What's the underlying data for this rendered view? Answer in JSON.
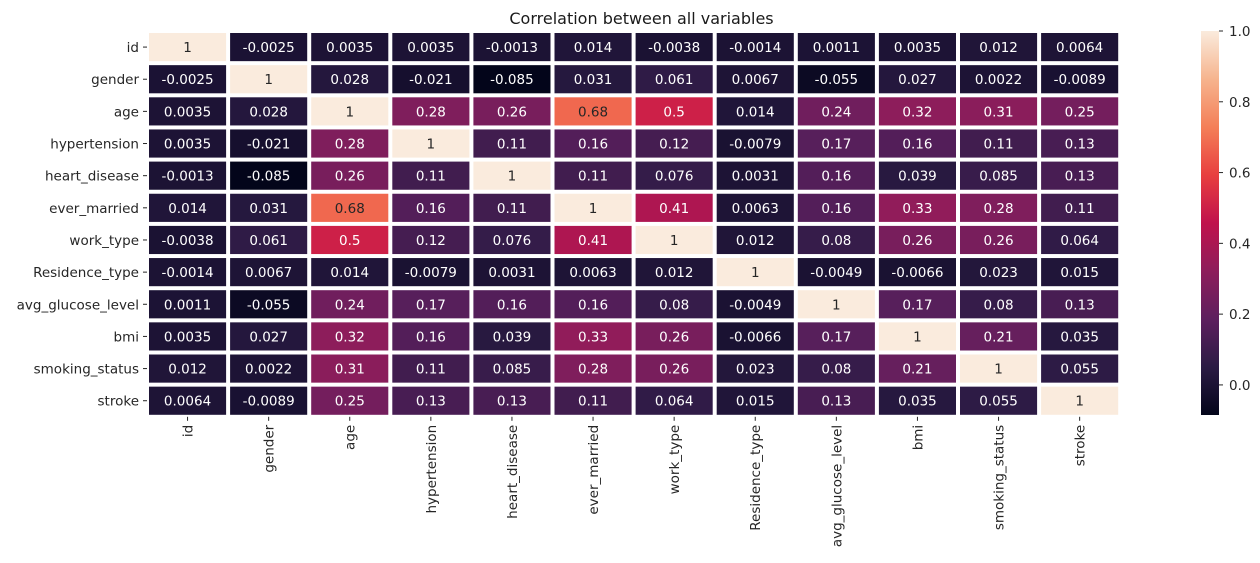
{
  "chart_data": {
    "type": "heatmap",
    "title": "Correlation between all variables",
    "xlabel": "",
    "ylabel": "",
    "labels": [
      "id",
      "gender",
      "age",
      "hypertension",
      "heart_disease",
      "ever_married",
      "work_type",
      "Residence_type",
      "avg_glucose_level",
      "bmi",
      "smoking_status",
      "stroke"
    ],
    "matrix": [
      [
        "1",
        "-0.0025",
        "0.0035",
        "0.0035",
        "-0.0013",
        "0.014",
        "-0.0038",
        "-0.0014",
        "0.0011",
        "0.0035",
        "0.012",
        "0.0064"
      ],
      [
        "-0.0025",
        "1",
        "0.028",
        "-0.021",
        "-0.085",
        "0.031",
        "0.061",
        "0.0067",
        "-0.055",
        "0.027",
        "0.0022",
        "-0.0089"
      ],
      [
        "0.0035",
        "0.028",
        "1",
        "0.28",
        "0.26",
        "0.68",
        "0.5",
        "0.014",
        "0.24",
        "0.32",
        "0.31",
        "0.25"
      ],
      [
        "0.0035",
        "-0.021",
        "0.28",
        "1",
        "0.11",
        "0.16",
        "0.12",
        "-0.0079",
        "0.17",
        "0.16",
        "0.11",
        "0.13"
      ],
      [
        "-0.0013",
        "-0.085",
        "0.26",
        "0.11",
        "1",
        "0.11",
        "0.076",
        "0.0031",
        "0.16",
        "0.039",
        "0.085",
        "0.13"
      ],
      [
        "0.014",
        "0.031",
        "0.68",
        "0.16",
        "0.11",
        "1",
        "0.41",
        "0.0063",
        "0.16",
        "0.33",
        "0.28",
        "0.11"
      ],
      [
        "-0.0038",
        "0.061",
        "0.5",
        "0.12",
        "0.076",
        "0.41",
        "1",
        "0.012",
        "0.08",
        "0.26",
        "0.26",
        "0.064"
      ],
      [
        "-0.0014",
        "0.0067",
        "0.014",
        "-0.0079",
        "0.0031",
        "0.0063",
        "0.012",
        "1",
        "-0.0049",
        "-0.0066",
        "0.023",
        "0.015"
      ],
      [
        "0.0011",
        "-0.055",
        "0.24",
        "0.17",
        "0.16",
        "0.16",
        "0.08",
        "-0.0049",
        "1",
        "0.17",
        "0.08",
        "0.13"
      ],
      [
        "0.0035",
        "0.027",
        "0.32",
        "0.16",
        "0.039",
        "0.33",
        "0.26",
        "-0.0066",
        "0.17",
        "1",
        "0.21",
        "0.035"
      ],
      [
        "0.012",
        "0.0022",
        "0.31",
        "0.11",
        "0.085",
        "0.28",
        "0.26",
        "0.023",
        "0.08",
        "0.21",
        "1",
        "0.055"
      ],
      [
        "0.0064",
        "-0.0089",
        "0.25",
        "0.13",
        "0.13",
        "0.11",
        "0.064",
        "0.015",
        "0.13",
        "0.035",
        "0.055",
        "1"
      ]
    ],
    "colorbar": {
      "min": -0.085,
      "max": 1.0,
      "ticks": [
        "0.0",
        "0.2",
        "0.4",
        "0.6",
        "0.8",
        "1.0"
      ],
      "colormap": "rocket",
      "stops": [
        "#03051a",
        "#2b1b44",
        "#5d1f5e",
        "#8e1d5b",
        "#c0124c",
        "#e83f3f",
        "#f47f58",
        "#f6b48e",
        "#faebdd"
      ]
    },
    "grid": false,
    "cell_text_colors": {
      "dark": "#ffffff",
      "light": "#262626"
    }
  }
}
